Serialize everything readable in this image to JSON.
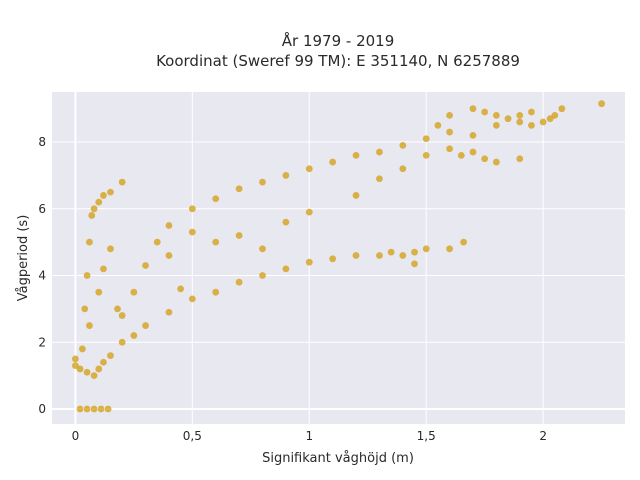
{
  "chart_data": {
    "type": "scatter",
    "title_line1": "År 1979 - 2019",
    "title_line2": "Koordinat (Sweref 99 TM): E 351140, N 6257889",
    "xlabel": "Signifikant våghöjd (m)",
    "ylabel": "Vågperiod (s)",
    "xlim": [
      -0.1,
      2.35
    ],
    "ylim": [
      -0.45,
      9.5
    ],
    "x_ticks": [
      {
        "value": 0,
        "label": "0"
      },
      {
        "value": 0.5,
        "label": "0,5"
      },
      {
        "value": 1,
        "label": "1"
      },
      {
        "value": 1.5,
        "label": "1,5"
      },
      {
        "value": 2,
        "label": "2"
      }
    ],
    "y_ticks": [
      {
        "value": 0,
        "label": "0"
      },
      {
        "value": 2,
        "label": "2"
      },
      {
        "value": 4,
        "label": "4"
      },
      {
        "value": 6,
        "label": "6"
      },
      {
        "value": 8,
        "label": "8"
      }
    ],
    "grid": true,
    "marker_color": "#D4A017",
    "plot_bgcolor": "#E8E8F0",
    "series": [
      {
        "points": [
          [
            0.02,
            0
          ],
          [
            0.05,
            0
          ],
          [
            0.08,
            0
          ],
          [
            0.11,
            0
          ],
          [
            0.14,
            0
          ],
          [
            0.0,
            1.3
          ],
          [
            0.0,
            1.5
          ],
          [
            0.02,
            1.2
          ],
          [
            0.03,
            1.8
          ],
          [
            0.05,
            1.1
          ],
          [
            0.06,
            2.5
          ],
          [
            0.08,
            1.0
          ],
          [
            0.1,
            1.2
          ],
          [
            0.12,
            1.4
          ],
          [
            0.15,
            1.6
          ],
          [
            0.04,
            3.0
          ],
          [
            0.05,
            4.0
          ],
          [
            0.06,
            5.0
          ],
          [
            0.07,
            5.8
          ],
          [
            0.08,
            6.0
          ],
          [
            0.1,
            6.2
          ],
          [
            0.12,
            6.4
          ],
          [
            0.15,
            6.5
          ],
          [
            0.2,
            6.8
          ],
          [
            0.1,
            3.5
          ],
          [
            0.12,
            4.2
          ],
          [
            0.15,
            4.8
          ],
          [
            0.18,
            3.0
          ],
          [
            0.2,
            2.8
          ],
          [
            0.25,
            3.5
          ],
          [
            0.3,
            4.3
          ],
          [
            0.35,
            5.0
          ],
          [
            0.4,
            5.5
          ],
          [
            0.2,
            2.0
          ],
          [
            0.25,
            2.2
          ],
          [
            0.3,
            2.5
          ],
          [
            0.4,
            2.9
          ],
          [
            0.5,
            3.3
          ],
          [
            0.6,
            3.5
          ],
          [
            0.7,
            3.8
          ],
          [
            0.8,
            4.0
          ],
          [
            0.9,
            4.2
          ],
          [
            1.0,
            4.4
          ],
          [
            1.1,
            4.5
          ],
          [
            1.2,
            4.6
          ],
          [
            0.5,
            6.0
          ],
          [
            0.6,
            6.3
          ],
          [
            0.7,
            6.6
          ],
          [
            0.8,
            6.8
          ],
          [
            0.9,
            7.0
          ],
          [
            1.0,
            7.2
          ],
          [
            1.1,
            7.4
          ],
          [
            1.2,
            7.6
          ],
          [
            1.3,
            7.7
          ],
          [
            1.4,
            7.9
          ],
          [
            1.5,
            8.1
          ],
          [
            1.6,
            8.3
          ],
          [
            0.9,
            5.6
          ],
          [
            1.0,
            5.9
          ],
          [
            1.2,
            6.4
          ],
          [
            1.3,
            6.9
          ],
          [
            1.4,
            7.2
          ],
          [
            1.5,
            7.6
          ],
          [
            1.6,
            7.8
          ],
          [
            1.7,
            8.2
          ],
          [
            1.8,
            8.5
          ],
          [
            1.9,
            8.6
          ],
          [
            0.7,
            5.2
          ],
          [
            0.8,
            4.8
          ],
          [
            0.6,
            5.0
          ],
          [
            0.5,
            5.3
          ],
          [
            0.4,
            4.6
          ],
          [
            0.45,
            3.6
          ],
          [
            1.3,
            4.6
          ],
          [
            1.35,
            4.7
          ],
          [
            1.4,
            4.6
          ],
          [
            1.45,
            4.7
          ],
          [
            1.5,
            4.8
          ],
          [
            1.6,
            4.8
          ],
          [
            1.66,
            5.0
          ],
          [
            1.45,
            4.35
          ],
          [
            1.55,
            8.5
          ],
          [
            1.6,
            8.8
          ],
          [
            1.7,
            9.0
          ],
          [
            1.75,
            8.9
          ],
          [
            1.8,
            8.8
          ],
          [
            1.85,
            8.7
          ],
          [
            1.9,
            8.8
          ],
          [
            1.95,
            8.9
          ],
          [
            1.95,
            8.5
          ],
          [
            2.0,
            8.6
          ],
          [
            2.03,
            8.7
          ],
          [
            2.05,
            8.8
          ],
          [
            2.08,
            9.0
          ],
          [
            2.25,
            9.15
          ],
          [
            1.65,
            7.6
          ],
          [
            1.75,
            7.5
          ],
          [
            1.8,
            7.4
          ],
          [
            1.9,
            7.5
          ],
          [
            1.7,
            7.7
          ]
        ]
      }
    ]
  }
}
